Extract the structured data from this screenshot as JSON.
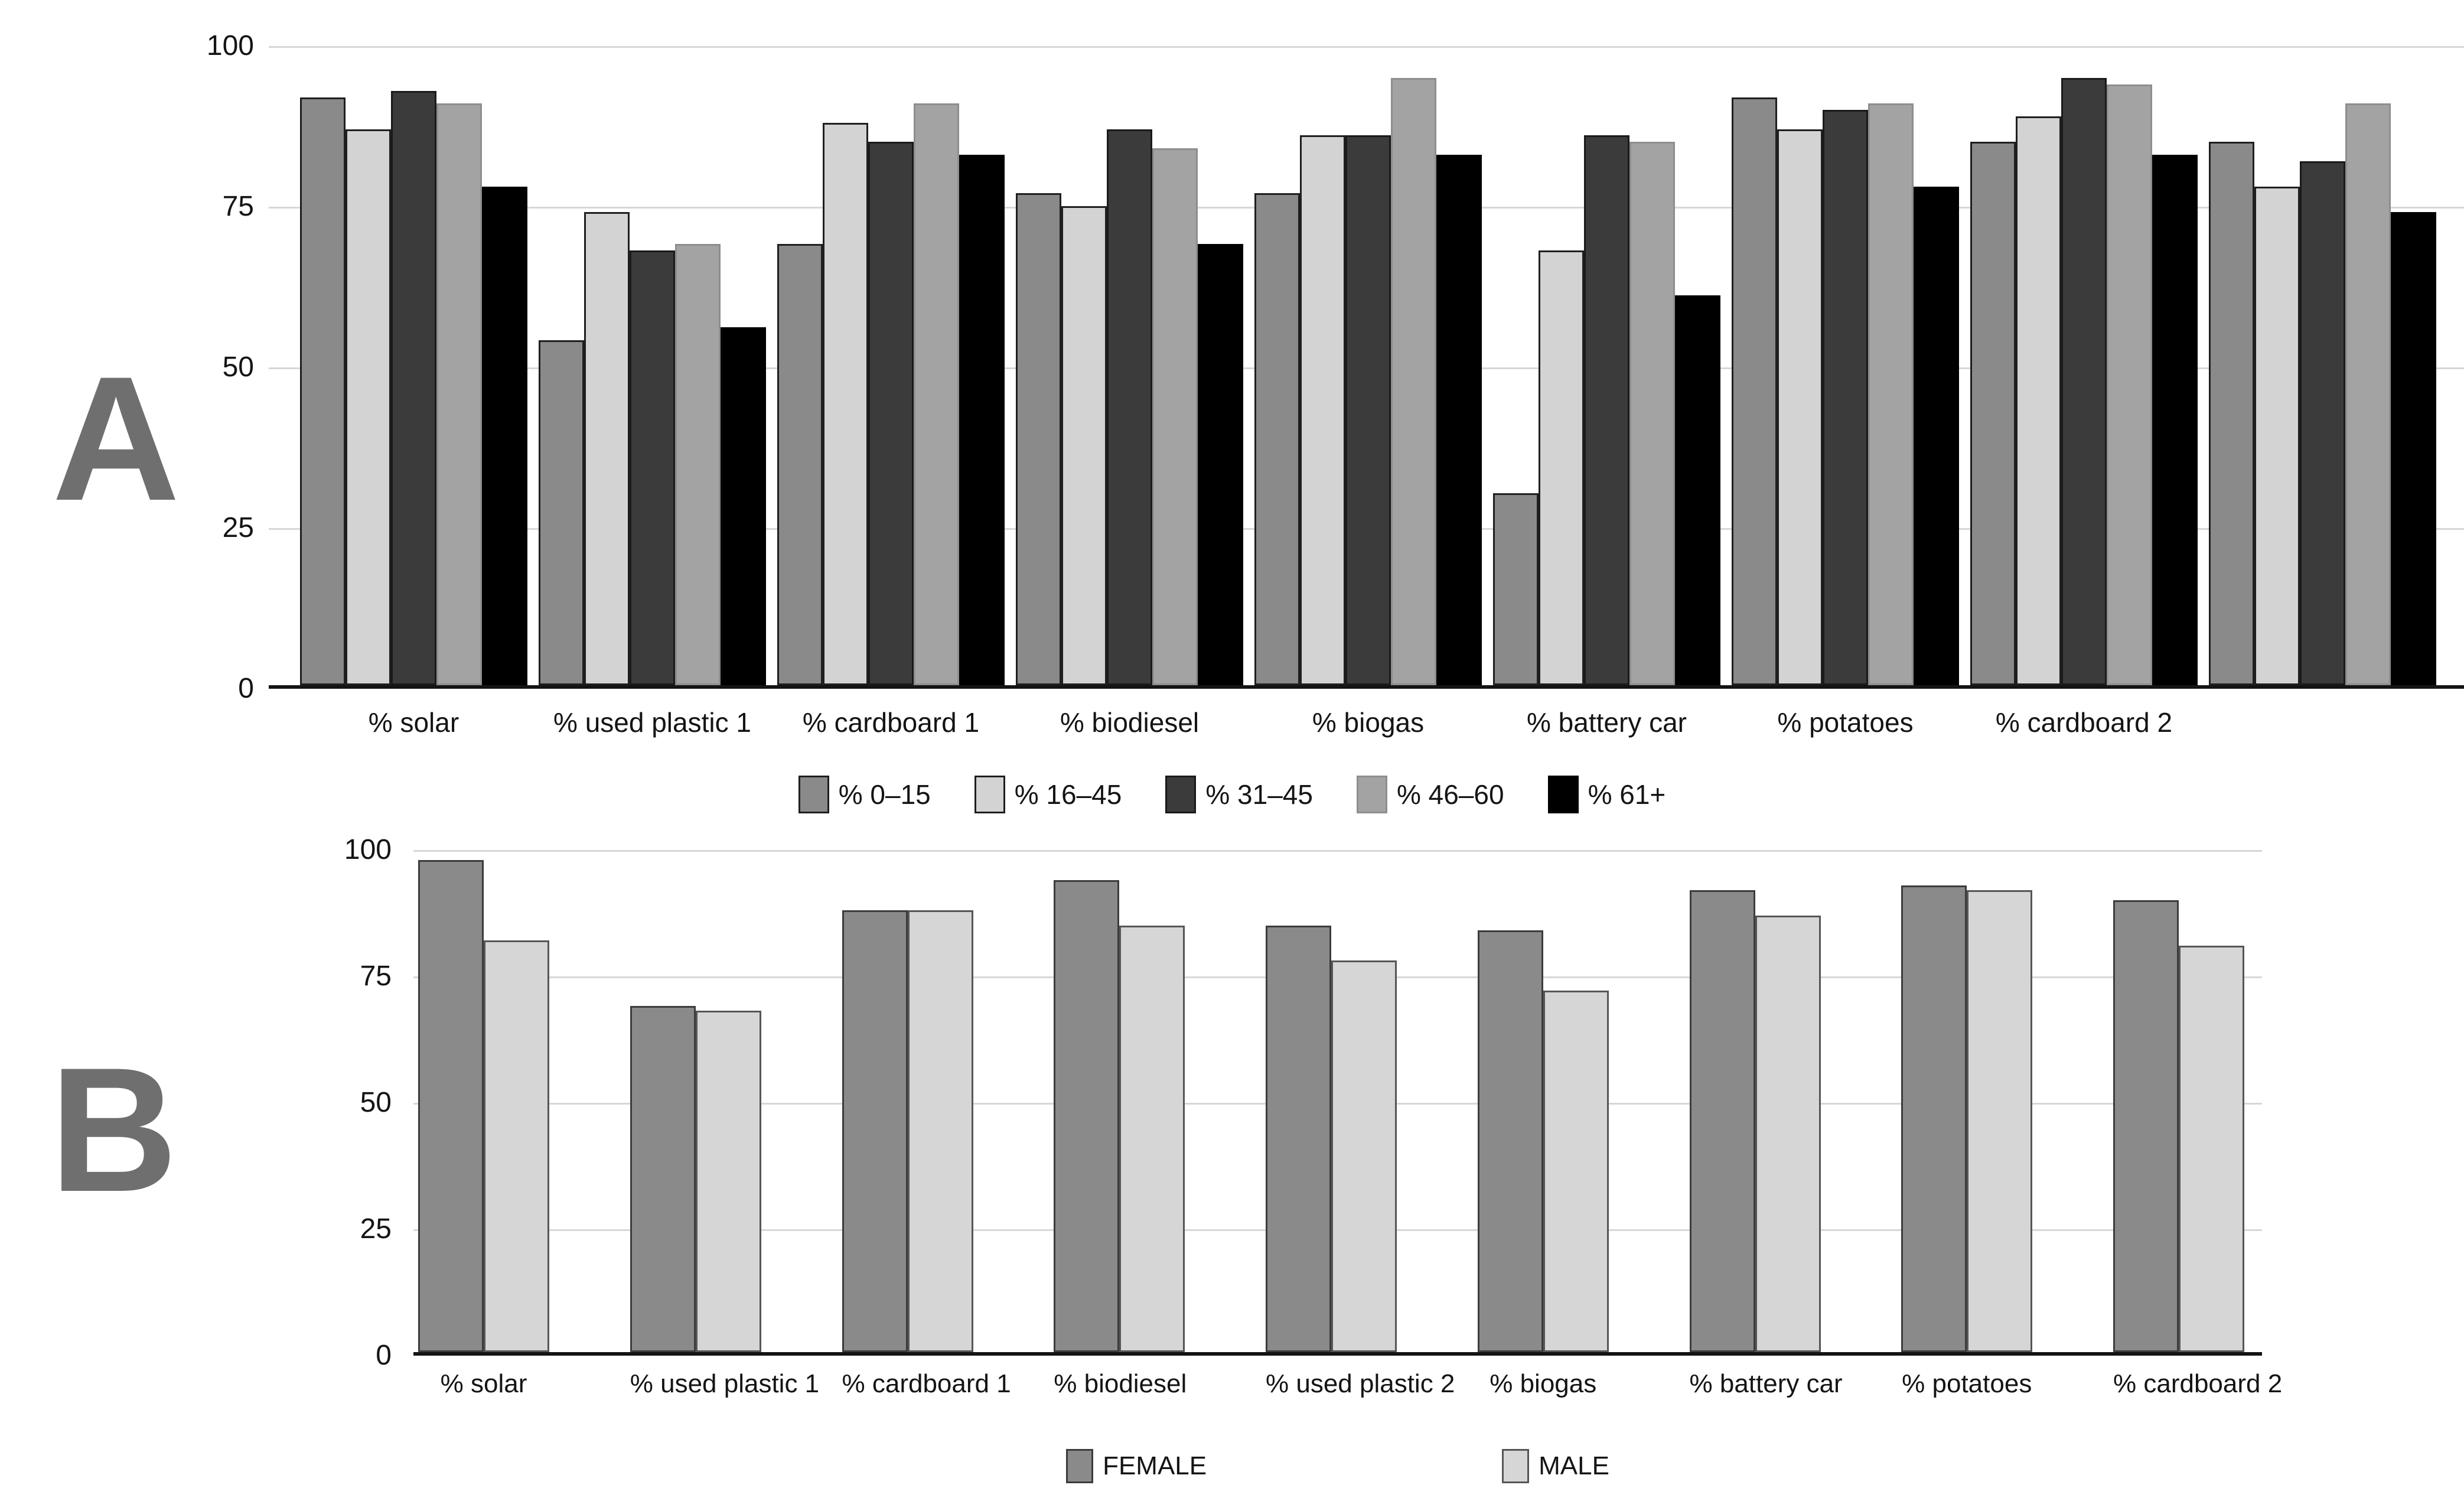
{
  "panels": {
    "a_letter": "A",
    "b_letter": "B"
  },
  "chart_data": [
    {
      "panel": "A",
      "type": "bar",
      "title": "",
      "xlabel": "",
      "ylabel": "",
      "ylim": [
        0,
        100
      ],
      "yticks": [
        100,
        75,
        50,
        25,
        0
      ],
      "grid": true,
      "legend_position": "bottom",
      "categories": [
        "% solar",
        "% used plastic 1",
        "% cardboard 1",
        "% biodiesel",
        "% biogas",
        "% battery car",
        "% potatoes",
        "% cardboard 2",
        ""
      ],
      "series": [
        {
          "name": "% 0–15",
          "color": "#8a8a8a",
          "border": "#1f1f1f",
          "values": [
            92,
            54,
            69,
            77,
            77,
            30,
            92,
            85,
            85
          ]
        },
        {
          "name": "% 16–45",
          "color": "#d3d3d3",
          "border": "#1f1f1f",
          "values": [
            87,
            74,
            88,
            75,
            86,
            68,
            87,
            89,
            78
          ]
        },
        {
          "name": "% 31–45",
          "color": "#3b3b3b",
          "border": "#1a1a1a",
          "values": [
            93,
            68,
            85,
            87,
            86,
            86,
            90,
            95,
            82
          ]
        },
        {
          "name": "% 46–60",
          "color": "#a3a3a3",
          "border": "#8e8e8e",
          "values": [
            91,
            69,
            91,
            84,
            95,
            85,
            91,
            94,
            91
          ]
        },
        {
          "name": "% 61+",
          "color": "#000000",
          "border": "#000000",
          "values": [
            78,
            56,
            83,
            69,
            83,
            61,
            78,
            83,
            74
          ]
        }
      ]
    },
    {
      "panel": "B",
      "type": "bar",
      "title": "",
      "xlabel": "",
      "ylabel": "",
      "ylim": [
        0,
        100
      ],
      "yticks": [
        100,
        75,
        50,
        25,
        0
      ],
      "grid": true,
      "legend_position": "bottom",
      "categories": [
        "% solar",
        "% used plastic 1",
        "% cardboard 1",
        "% biodiesel",
        "% used plastic 2",
        "% biogas",
        "% battery car",
        "% potatoes",
        "% cardboard 2"
      ],
      "series": [
        {
          "name": "FEMALE",
          "color": "#8a8a8a",
          "border": "#3c3c3c",
          "values": [
            98,
            69,
            88,
            94,
            85,
            84,
            92,
            93,
            90
          ]
        },
        {
          "name": "MALE",
          "color": "#d6d6d6",
          "border": "#565656",
          "values": [
            82,
            68,
            88,
            85,
            78,
            72,
            87,
            92,
            81
          ]
        }
      ]
    }
  ]
}
